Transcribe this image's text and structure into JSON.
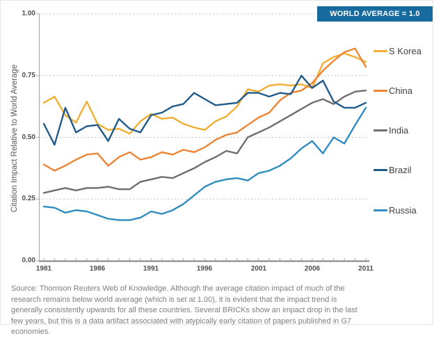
{
  "badge": {
    "label": "WORLD AVERAGE = 1.0",
    "bg": "#176a9d"
  },
  "axis": {
    "y_label": "Citation Impact Relative to World Average",
    "y_tick_labels": [
      "1.00",
      "0.75",
      "0.50",
      "0.25",
      "0.00"
    ],
    "x_tick_labels": [
      "1981",
      "1986",
      "1991",
      "1996",
      "2001",
      "2006",
      "2011"
    ]
  },
  "source_note": "Source: Thomson Reuters Web of Knowledge. Although the average citation impact of much of the research remains below world average (which is set at 1.00), it is evident that the impact trend is generally consistently upwards for all these countries. Several BRICKs show an impact drop in the last few years, but this is a data artifact associated with atypically early citation of papers published in G7 economies.",
  "chart_data": {
    "type": "line",
    "title": "",
    "xlabel": "",
    "ylabel": "Citation Impact Relative to World Average",
    "xlim": [
      1981,
      2011
    ],
    "ylim": [
      0.0,
      1.0
    ],
    "x_ticks": [
      1981,
      1986,
      1991,
      1996,
      2001,
      2006,
      2011
    ],
    "y_ticks": [
      0.0,
      0.25,
      0.5,
      0.75,
      1.0
    ],
    "grid": "horizontal-dashed",
    "legend_position": "right-outside",
    "reference_line": {
      "value": 1.0,
      "label": "WORLD AVERAGE = 1.0"
    },
    "x": [
      1981,
      1982,
      1983,
      1984,
      1985,
      1986,
      1987,
      1988,
      1989,
      1990,
      1991,
      1992,
      1993,
      1994,
      1995,
      1996,
      1997,
      1998,
      1999,
      2000,
      2001,
      2002,
      2003,
      2004,
      2005,
      2006,
      2007,
      2008,
      2009,
      2010,
      2011
    ],
    "series": [
      {
        "name": "S Korea",
        "color": "#f0ad33",
        "values": [
          0.64,
          0.665,
          0.59,
          0.56,
          0.645,
          0.555,
          0.53,
          0.535,
          0.515,
          0.565,
          0.595,
          0.575,
          0.58,
          0.555,
          0.54,
          0.53,
          0.565,
          0.585,
          0.625,
          0.695,
          0.685,
          0.71,
          0.715,
          0.71,
          0.715,
          0.7,
          0.8,
          0.825,
          0.84,
          0.825,
          0.805
        ]
      },
      {
        "name": "China",
        "color": "#ed8433",
        "values": [
          0.39,
          0.365,
          0.385,
          0.41,
          0.43,
          0.435,
          0.385,
          0.42,
          0.44,
          0.41,
          0.42,
          0.44,
          0.43,
          0.45,
          0.44,
          0.46,
          0.49,
          0.51,
          0.52,
          0.55,
          0.58,
          0.6,
          0.65,
          0.68,
          0.69,
          0.72,
          0.77,
          0.81,
          0.845,
          0.86,
          0.785
        ]
      },
      {
        "name": "India",
        "color": "#6d6e71",
        "values": [
          0.275,
          0.285,
          0.295,
          0.285,
          0.295,
          0.295,
          0.3,
          0.29,
          0.29,
          0.32,
          0.33,
          0.34,
          0.335,
          0.355,
          0.375,
          0.4,
          0.42,
          0.445,
          0.435,
          0.5,
          0.52,
          0.54,
          0.565,
          0.59,
          0.615,
          0.64,
          0.655,
          0.635,
          0.665,
          0.685,
          0.69
        ]
      },
      {
        "name": "Brazil",
        "color": "#1f5a89",
        "values": [
          0.555,
          0.47,
          0.62,
          0.52,
          0.545,
          0.55,
          0.485,
          0.575,
          0.535,
          0.52,
          0.59,
          0.6,
          0.625,
          0.635,
          0.68,
          0.655,
          0.63,
          0.635,
          0.64,
          0.68,
          0.68,
          0.665,
          0.68,
          0.675,
          0.75,
          0.7,
          0.73,
          0.645,
          0.62,
          0.62,
          0.64
        ]
      },
      {
        "name": "Russia",
        "color": "#2f8cc0",
        "values": [
          0.22,
          0.215,
          0.195,
          0.205,
          0.2,
          0.185,
          0.17,
          0.165,
          0.165,
          0.175,
          0.2,
          0.19,
          0.205,
          0.23,
          0.265,
          0.3,
          0.32,
          0.33,
          0.335,
          0.325,
          0.355,
          0.365,
          0.385,
          0.415,
          0.455,
          0.485,
          0.435,
          0.5,
          0.475,
          0.55,
          0.62
        ]
      }
    ]
  }
}
